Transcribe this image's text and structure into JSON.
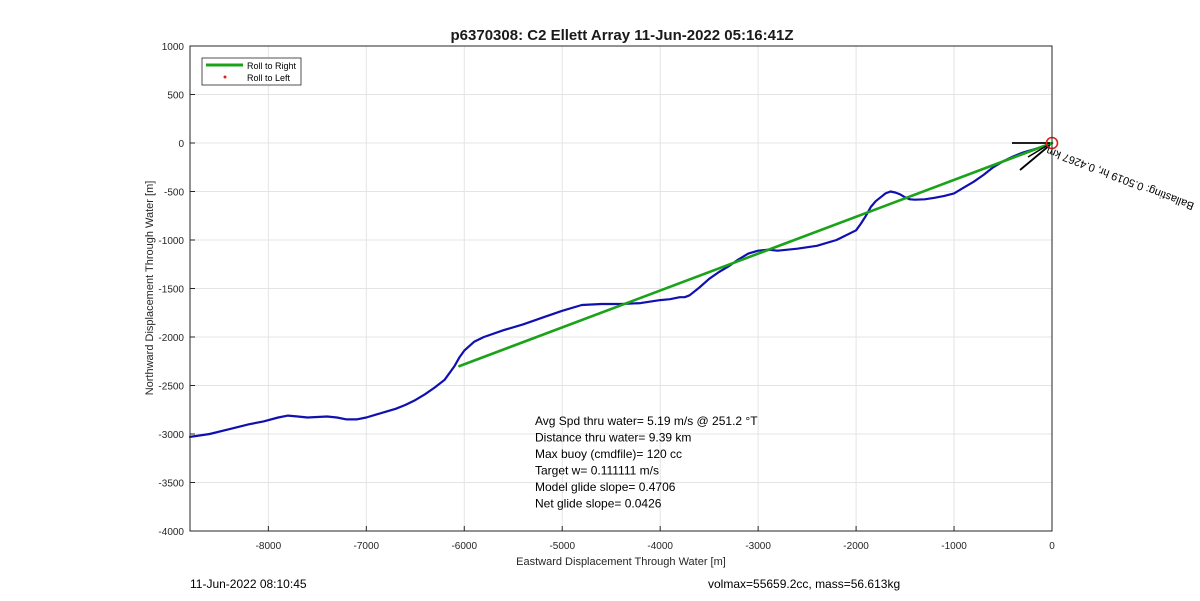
{
  "footer": {
    "left": "11-Jun-2022 08:10:45",
    "right": "volmax=55659.2cc, mass=56.613kg"
  },
  "chart_data": {
    "type": "line",
    "title": "p6370308: C2 Ellett Array 11-Jun-2022 05:16:41Z",
    "xlabel": "Eastward Displacement Through Water [m]",
    "ylabel": "Northward Displacement Through Water [m]",
    "xlim": [
      -8800,
      0
    ],
    "ylim": [
      -4000,
      1000
    ],
    "xticks": [
      -8000,
      -7000,
      -6000,
      -5000,
      -4000,
      -3000,
      -2000,
      -1000,
      0
    ],
    "yticks": [
      1000,
      500,
      0,
      -500,
      -1000,
      -1500,
      -2000,
      -2500,
      -3000,
      -3500,
      -4000
    ],
    "grid": true,
    "legend_position": "top-left",
    "legend": [
      {
        "label": "Roll to Right",
        "color": "#1aa31a",
        "style": "line"
      },
      {
        "label": "Roll to Left",
        "color": "#e02020",
        "style": "dot"
      }
    ],
    "series": [
      {
        "color": "#1010b0",
        "x": [
          -8800,
          -8600,
          -8400,
          -8200,
          -8050,
          -7900,
          -7800,
          -7700,
          -7600,
          -7500,
          -7400,
          -7300,
          -7200,
          -7100,
          -7000,
          -6900,
          -6800,
          -6700,
          -6600,
          -6500,
          -6400,
          -6300,
          -6200,
          -6100,
          -6050,
          -6000,
          -5900,
          -5800,
          -5600,
          -5400,
          -5200,
          -5000,
          -4800,
          -4600,
          -4400,
          -4200,
          -4000,
          -3900,
          -3800,
          -3750,
          -3700,
          -3600,
          -3500,
          -3400,
          -3300,
          -3200,
          -3100,
          -3000,
          -2900,
          -2800,
          -2700,
          -2600,
          -2400,
          -2200,
          -2000,
          -1950,
          -1900,
          -1850,
          -1800,
          -1750,
          -1700,
          -1650,
          -1600,
          -1550,
          -1500,
          -1450,
          -1400,
          -1300,
          -1200,
          -1100,
          -1000,
          -900,
          -800,
          -700,
          -600,
          -500,
          -400,
          -350,
          -300,
          -250,
          -200,
          -150,
          -100,
          -50,
          0
        ],
        "y": [
          -3030,
          -3000,
          -2950,
          -2900,
          -2870,
          -2830,
          -2810,
          -2820,
          -2830,
          -2825,
          -2820,
          -2830,
          -2850,
          -2850,
          -2830,
          -2800,
          -2770,
          -2740,
          -2700,
          -2650,
          -2590,
          -2520,
          -2440,
          -2300,
          -2210,
          -2140,
          -2050,
          -2000,
          -1930,
          -1870,
          -1800,
          -1730,
          -1670,
          -1660,
          -1660,
          -1650,
          -1620,
          -1610,
          -1590,
          -1590,
          -1570,
          -1490,
          -1400,
          -1330,
          -1270,
          -1200,
          -1140,
          -1110,
          -1100,
          -1110,
          -1100,
          -1090,
          -1060,
          -1000,
          -900,
          -830,
          -750,
          -660,
          -600,
          -560,
          -520,
          -500,
          -510,
          -530,
          -560,
          -580,
          -585,
          -580,
          -565,
          -545,
          -520,
          -460,
          -400,
          -330,
          -250,
          -190,
          -140,
          -120,
          -100,
          -85,
          -70,
          -55,
          -40,
          -20,
          0
        ]
      },
      {
        "name": "Roll to Right",
        "color": "#1aa31a",
        "x": [
          -6050,
          0
        ],
        "y": [
          -2300,
          0
        ]
      }
    ],
    "annotations": [
      "Avg Spd thru water=  5.19 m/s @ 251.2 °T",
      "Distance thru water=  9.39 km",
      "Max buoy (cmdfile)= 120 cc",
      "Target w= 0.111111 m/s",
      "Model glide slope= 0.4706",
      "Net glide slope= 0.0426"
    ],
    "rotated_label": "Ballasting: 0.5019 hr, 0.4267 km",
    "end_marker": {
      "x": 0,
      "y": 0,
      "color": "#e02020"
    }
  }
}
